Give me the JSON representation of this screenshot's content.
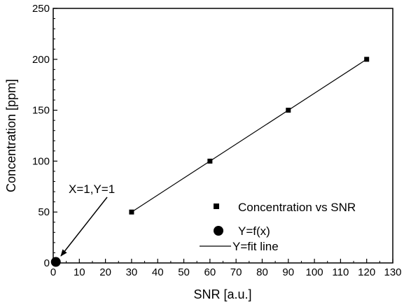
{
  "chart_data": {
    "type": "scatter",
    "xlabel": "SNR [a.u.]",
    "ylabel": "Concentration [ppm]",
    "xlim": [
      0,
      130
    ],
    "ylim": [
      0,
      250
    ],
    "x_ticks": [
      0,
      10,
      20,
      30,
      40,
      50,
      60,
      70,
      80,
      90,
      100,
      110,
      120,
      130
    ],
    "y_ticks": [
      0,
      50,
      100,
      150,
      200,
      250
    ],
    "grid": false,
    "legend_position": "bottom-right",
    "series": [
      {
        "name": "Concentration vs SNR",
        "marker": "square",
        "color": "#000000",
        "x": [
          30,
          60,
          90,
          120
        ],
        "y": [
          50,
          100,
          150,
          200
        ]
      },
      {
        "name": "Y=f(x)",
        "marker": "circle",
        "color": "#000000",
        "x": [
          1
        ],
        "y": [
          1
        ]
      },
      {
        "name": "Y=fit line",
        "marker": "line",
        "color": "#000000",
        "x": [
          30,
          120
        ],
        "y": [
          50,
          200
        ]
      }
    ],
    "annotations": [
      {
        "text": "X=1,Y=1",
        "x": 1,
        "y": 1
      }
    ]
  }
}
